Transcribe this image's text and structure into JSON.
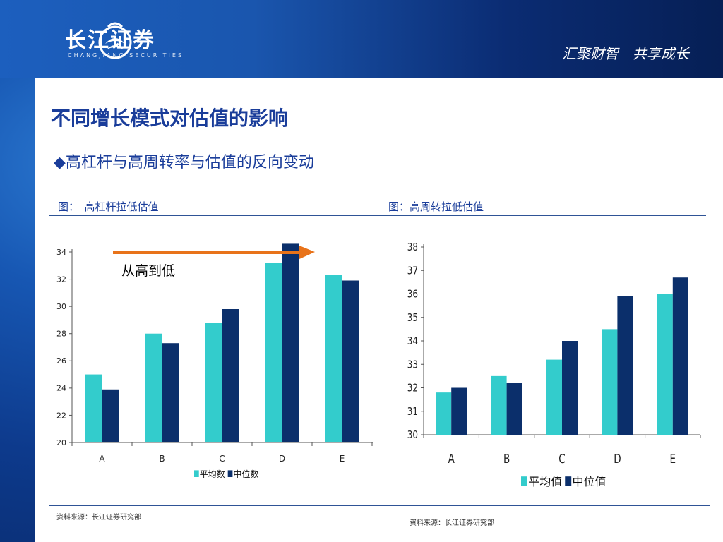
{
  "header": {
    "brand_name": "长江证券",
    "brand_sub": "CHANGJIANG SECURITIES",
    "slogan": "汇聚财智　共享成长",
    "logo_icon": "dragon-swirl-logo-icon"
  },
  "slide": {
    "title": "不同增长模式对估值的影响",
    "subtitle": "◆高杠杆与高周转率与估值的反向变动"
  },
  "colors": {
    "mean": "#33cccc",
    "median": "#0b2f6b",
    "arrow": "#e8731a",
    "text_blue": "#1a3d9a"
  },
  "chart_data": [
    {
      "type": "bar",
      "caption": "图：　高杠杆拉低估值",
      "categories": [
        "A",
        "B",
        "C",
        "D",
        "E"
      ],
      "series": [
        {
          "name": "平均数",
          "values": [
            25.0,
            28.0,
            28.8,
            33.2,
            32.3
          ]
        },
        {
          "name": "中位数",
          "values": [
            23.9,
            27.3,
            29.8,
            34.6,
            31.9
          ]
        }
      ],
      "ylim": [
        20,
        34
      ],
      "yticks": [
        20,
        22,
        24,
        26,
        28,
        30,
        32,
        34
      ],
      "legend": "bottom",
      "annotation": {
        "text": "从高到低",
        "arrow": "right"
      },
      "source": "资料来源：长江证券研究部"
    },
    {
      "type": "bar",
      "caption": "图：高周转拉低估值",
      "categories": [
        "A",
        "B",
        "C",
        "D",
        "E"
      ],
      "series": [
        {
          "name": "平均值",
          "values": [
            31.8,
            32.5,
            33.2,
            34.5,
            36.0
          ]
        },
        {
          "name": "中位值",
          "values": [
            32.0,
            32.2,
            34.0,
            35.9,
            36.7
          ]
        }
      ],
      "ylim": [
        30,
        38
      ],
      "yticks": [
        30,
        31,
        32,
        33,
        34,
        35,
        36,
        37,
        38
      ],
      "legend": "bottom",
      "source": "资料来源：长江证券研究部"
    }
  ]
}
